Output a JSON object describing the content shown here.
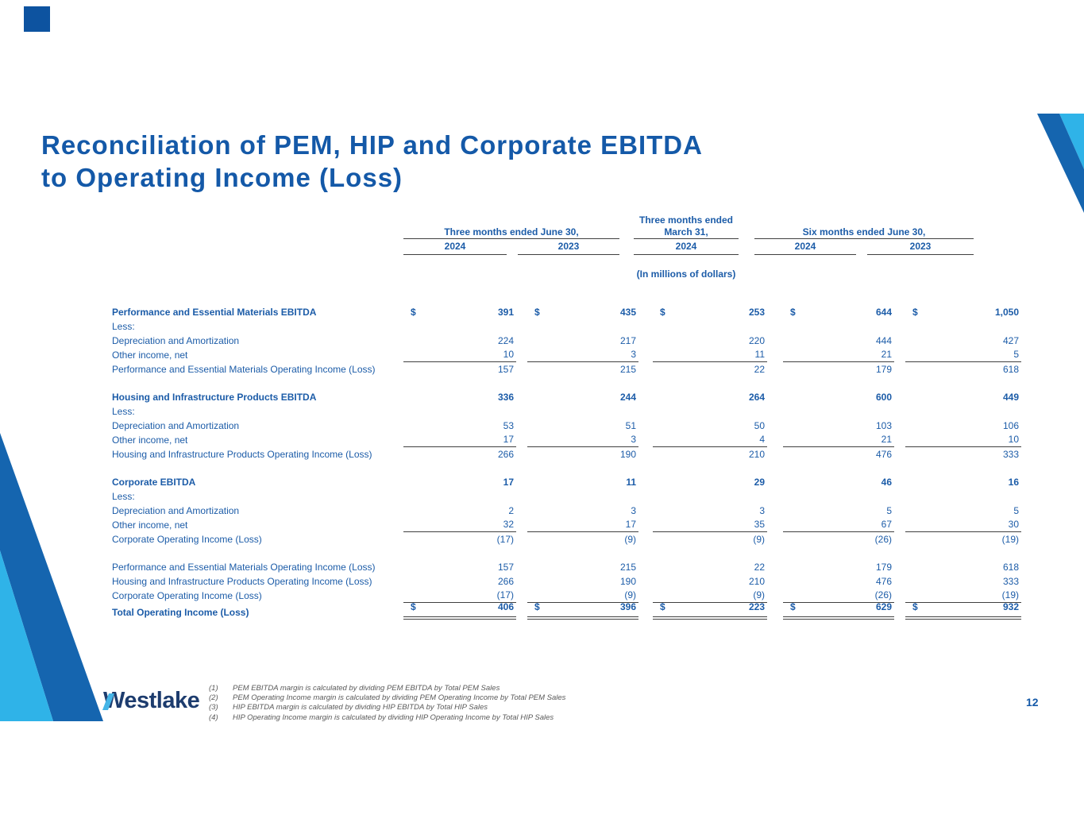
{
  "title": {
    "line1": "Reconciliation of PEM, HIP and Corporate EBITDA",
    "line2": "to Operating Income (Loss)"
  },
  "colors": {
    "title_blue": "#1459A8",
    "table_blue": "#1C5CA8",
    "rule_gray": "#404040",
    "deco_dark_blue": "#1565AF",
    "deco_light_blue": "#2FB3E8",
    "logo_navy": "#1D3C6E",
    "logo_accent": "#45B5E7"
  },
  "table": {
    "groups": [
      {
        "line1": "",
        "line2": "Three months ended June 30,",
        "years": [
          "2024",
          "2023"
        ]
      },
      {
        "line1": "Three months ended",
        "line2": "March 31,",
        "years": [
          "2024"
        ]
      },
      {
        "line1": "",
        "line2": "Six months ended June 30,",
        "years": [
          "2024",
          "2023"
        ]
      }
    ],
    "units_note": "(In millions of dollars)",
    "rows": [
      {
        "label": "Performance and Essential Materials EBITDA",
        "style": "head",
        "dollar": true,
        "values": [
          "391",
          "435",
          "253",
          "644",
          "1,050"
        ]
      },
      {
        "label": "Less:",
        "values": [
          "",
          "",
          "",
          "",
          ""
        ]
      },
      {
        "label": "Depreciation and Amortization",
        "values": [
          "224",
          "217",
          "220",
          "444",
          "427"
        ]
      },
      {
        "label": "Other income, net",
        "rule_after": true,
        "values": [
          "10",
          "3",
          "11",
          "21",
          "5"
        ]
      },
      {
        "label": "Performance and Essential Materials Operating Income (Loss)",
        "values": [
          "157",
          "215",
          "22",
          "179",
          "618"
        ]
      },
      {
        "label": "Housing and Infrastructure Products EBITDA",
        "style": "head",
        "gap_before": true,
        "values": [
          "336",
          "244",
          "264",
          "600",
          "449"
        ]
      },
      {
        "label": "Less:",
        "values": [
          "",
          "",
          "",
          "",
          ""
        ]
      },
      {
        "label": "Depreciation and Amortization",
        "values": [
          "53",
          "51",
          "50",
          "103",
          "106"
        ]
      },
      {
        "label": "Other income, net",
        "rule_after": true,
        "values": [
          "17",
          "3",
          "4",
          "21",
          "10"
        ]
      },
      {
        "label": "Housing and Infrastructure Products Operating Income (Loss)",
        "values": [
          "266",
          "190",
          "210",
          "476",
          "333"
        ]
      },
      {
        "label": "Corporate EBITDA",
        "style": "head",
        "gap_before": true,
        "values": [
          "17",
          "11",
          "29",
          "46",
          "16"
        ]
      },
      {
        "label": "Less:",
        "values": [
          "",
          "",
          "",
          "",
          ""
        ]
      },
      {
        "label": "Depreciation and Amortization",
        "values": [
          "2",
          "3",
          "3",
          "5",
          "5"
        ]
      },
      {
        "label": "Other income, net",
        "rule_after": true,
        "values": [
          "32",
          "17",
          "35",
          "67",
          "30"
        ]
      },
      {
        "label": "Corporate Operating Income (Loss)",
        "values": [
          "(17)",
          "(9)",
          "(9)",
          "(26)",
          "(19)"
        ]
      },
      {
        "label": "Performance and Essential Materials Operating Income (Loss)",
        "gap_before": true,
        "values": [
          "157",
          "215",
          "22",
          "179",
          "618"
        ]
      },
      {
        "label": "Housing and Infrastructure Products Operating Income (Loss)",
        "values": [
          "266",
          "190",
          "210",
          "476",
          "333"
        ]
      },
      {
        "label": "Corporate Operating Income (Loss)",
        "rule_after": true,
        "values": [
          "(17)",
          "(9)",
          "(9)",
          "(26)",
          "(19)"
        ]
      },
      {
        "label": "Total Operating Income (Loss)",
        "style": "total",
        "dollar": true,
        "double_rule_after": true,
        "values": [
          "406",
          "396",
          "223",
          "629",
          "932"
        ]
      }
    ]
  },
  "footnotes": [
    {
      "num": "(1)",
      "text": "PEM EBITDA margin is calculated by dividing PEM EBITDA by Total PEM Sales"
    },
    {
      "num": "(2)",
      "text": "PEM Operating Income margin is calculated by dividing PEM Operating Income by Total PEM Sales"
    },
    {
      "num": "(3)",
      "text": "HIP EBITDA margin is calculated by dividing HIP EBITDA by Total HIP Sales"
    },
    {
      "num": "(4)",
      "text": "HIP Operating Income margin is calculated by dividing HIP Operating Income by Total HIP Sales"
    }
  ],
  "logo": {
    "text": "Westlake"
  },
  "page": {
    "number": "12"
  }
}
